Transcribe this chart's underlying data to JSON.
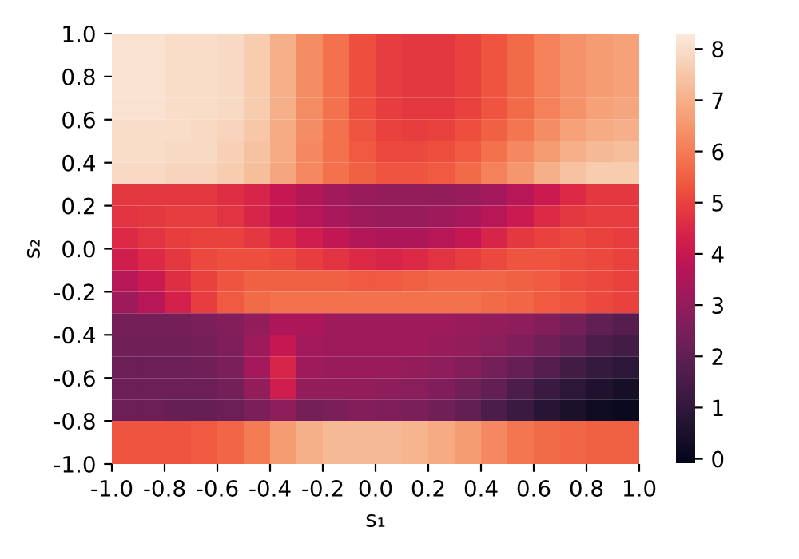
{
  "chart_data": {
    "type": "heatmap",
    "xlabel": "s₁",
    "ylabel": "s₂",
    "xlim": [
      -1.0,
      1.0
    ],
    "ylim": [
      -1.0,
      1.0
    ],
    "xticks": [
      {
        "value": -1.0,
        "label": "-1.0"
      },
      {
        "value": -0.8,
        "label": "-0.8"
      },
      {
        "value": -0.6,
        "label": "-0.6"
      },
      {
        "value": -0.4,
        "label": "-0.4"
      },
      {
        "value": -0.2,
        "label": "-0.2"
      },
      {
        "value": 0.0,
        "label": "0.0"
      },
      {
        "value": 0.2,
        "label": "0.2"
      },
      {
        "value": 0.4,
        "label": "0.4"
      },
      {
        "value": 0.6,
        "label": "0.6"
      },
      {
        "value": 0.8,
        "label": "0.8"
      },
      {
        "value": 1.0,
        "label": "1.0"
      }
    ],
    "yticks": [
      {
        "value": -1.0,
        "label": "-1.0"
      },
      {
        "value": -0.8,
        "label": "-0.8"
      },
      {
        "value": -0.6,
        "label": "-0.6"
      },
      {
        "value": -0.4,
        "label": "-0.4"
      },
      {
        "value": -0.2,
        "label": "-0.2"
      },
      {
        "value": 0.0,
        "label": "0.0"
      },
      {
        "value": 0.2,
        "label": "0.2"
      },
      {
        "value": 0.4,
        "label": "0.4"
      },
      {
        "value": 0.6,
        "label": "0.6"
      },
      {
        "value": 0.8,
        "label": "0.8"
      },
      {
        "value": 1.0,
        "label": "1.0"
      }
    ],
    "clim": [
      -0.1,
      8.3
    ],
    "cticks": [
      0,
      1,
      2,
      3,
      4,
      5,
      6,
      7,
      8
    ],
    "cells": [
      [
        8.1,
        8.1,
        8.0,
        8.0,
        7.9,
        7.6,
        7.0,
        6.3,
        5.8,
        5.2,
        4.9,
        4.8,
        4.8,
        5.0,
        5.3,
        5.7,
        6.1,
        6.4,
        6.6,
        6.7
      ],
      [
        8.1,
        8.1,
        8.0,
        8.0,
        7.9,
        7.6,
        7.0,
        6.3,
        5.8,
        5.2,
        4.9,
        4.8,
        4.8,
        5.0,
        5.3,
        5.7,
        6.1,
        6.4,
        6.6,
        6.7
      ],
      [
        8.1,
        8.1,
        8.0,
        8.0,
        7.9,
        7.6,
        7.0,
        6.3,
        5.8,
        5.2,
        4.9,
        4.8,
        4.8,
        5.0,
        5.3,
        5.7,
        6.1,
        6.4,
        6.6,
        6.7
      ],
      [
        8.1,
        8.1,
        8.0,
        8.0,
        7.9,
        7.6,
        7.0,
        6.3,
        5.8,
        5.2,
        4.9,
        4.8,
        4.8,
        5.0,
        5.3,
        5.7,
        6.1,
        6.4,
        6.7,
        6.8
      ],
      [
        8.0,
        8.0,
        8.0,
        7.9,
        7.8,
        7.5,
        6.9,
        6.3,
        5.8,
        5.3,
        5.0,
        4.9,
        5.0,
        5.2,
        5.5,
        5.9,
        6.3,
        6.7,
        6.9,
        7.0
      ],
      [
        8.0,
        8.0,
        7.9,
        7.9,
        7.7,
        7.4,
        6.9,
        6.2,
        5.8,
        5.4,
        5.1,
        5.1,
        5.2,
        5.4,
        5.8,
        6.2,
        6.6,
        7.0,
        7.2,
        7.3
      ],
      [
        7.9,
        7.9,
        7.8,
        7.8,
        7.6,
        7.3,
        6.8,
        6.2,
        5.8,
        5.5,
        5.3,
        5.3,
        5.4,
        5.7,
        6.1,
        6.5,
        7.0,
        7.4,
        7.6,
        7.6
      ],
      [
        4.8,
        4.8,
        4.8,
        4.8,
        4.6,
        4.4,
        4.0,
        3.6,
        3.3,
        3.1,
        3.0,
        3.0,
        3.0,
        3.1,
        3.3,
        3.7,
        4.1,
        4.5,
        4.8,
        4.8
      ],
      [
        4.7,
        4.8,
        4.9,
        4.9,
        4.7,
        4.4,
        4.0,
        3.7,
        3.4,
        3.2,
        3.1,
        3.1,
        3.2,
        3.4,
        3.7,
        4.1,
        4.5,
        4.8,
        4.9,
        4.9
      ],
      [
        4.5,
        4.7,
        4.9,
        5.0,
        5.0,
        4.8,
        4.5,
        4.2,
        3.9,
        3.6,
        3.5,
        3.5,
        3.7,
        4.0,
        4.4,
        4.8,
        5.0,
        5.1,
        5.0,
        4.9
      ],
      [
        4.2,
        4.5,
        4.8,
        5.1,
        5.2,
        5.2,
        5.1,
        4.9,
        4.7,
        4.5,
        4.4,
        4.5,
        4.7,
        4.9,
        5.1,
        5.3,
        5.3,
        5.2,
        5.1,
        5.0
      ],
      [
        3.7,
        4.1,
        4.6,
        5.0,
        5.3,
        5.5,
        5.5,
        5.5,
        5.5,
        5.4,
        5.4,
        5.5,
        5.6,
        5.6,
        5.6,
        5.5,
        5.4,
        5.2,
        5.1,
        5.0
      ],
      [
        3.2,
        3.7,
        4.3,
        4.9,
        5.4,
        5.7,
        5.8,
        5.8,
        5.8,
        5.8,
        5.8,
        5.8,
        5.8,
        5.8,
        5.7,
        5.6,
        5.4,
        5.3,
        5.1,
        5.0
      ],
      [
        2.4,
        2.4,
        2.4,
        2.5,
        2.7,
        3.0,
        3.5,
        3.5,
        3.2,
        3.2,
        3.2,
        3.2,
        3.2,
        3.1,
        3.0,
        2.9,
        2.7,
        2.4,
        2.0,
        1.8
      ],
      [
        2.3,
        2.3,
        2.3,
        2.4,
        2.6,
        3.2,
        4.0,
        3.3,
        3.2,
        3.2,
        3.2,
        3.2,
        3.1,
        3.0,
        2.8,
        2.6,
        2.3,
        2.0,
        1.6,
        1.4
      ],
      [
        2.2,
        2.2,
        2.2,
        2.3,
        2.5,
        3.3,
        4.4,
        3.2,
        3.1,
        3.1,
        3.1,
        3.0,
        2.9,
        2.7,
        2.4,
        2.1,
        1.8,
        1.4,
        1.1,
        0.9
      ],
      [
        2.2,
        2.2,
        2.2,
        2.2,
        2.4,
        3.0,
        4.2,
        3.0,
        3.0,
        3.0,
        2.9,
        2.8,
        2.6,
        2.3,
        2.0,
        1.6,
        1.2,
        0.9,
        0.6,
        0.4
      ],
      [
        2.2,
        2.2,
        2.1,
        2.1,
        2.2,
        2.5,
        2.9,
        2.4,
        2.5,
        2.7,
        2.6,
        2.5,
        2.3,
        2.0,
        1.6,
        1.2,
        0.8,
        0.5,
        0.2,
        0.1
      ],
      [
        5.3,
        5.3,
        5.3,
        5.4,
        5.6,
        6.0,
        6.6,
        7.0,
        7.2,
        7.2,
        7.2,
        7.1,
        6.9,
        6.6,
        6.2,
        5.9,
        5.7,
        5.6,
        5.5,
        5.5
      ],
      [
        5.3,
        5.3,
        5.3,
        5.4,
        5.6,
        6.0,
        6.6,
        7.0,
        7.2,
        7.2,
        7.2,
        7.1,
        6.9,
        6.6,
        6.2,
        5.9,
        5.7,
        5.6,
        5.5,
        5.5
      ]
    ]
  }
}
